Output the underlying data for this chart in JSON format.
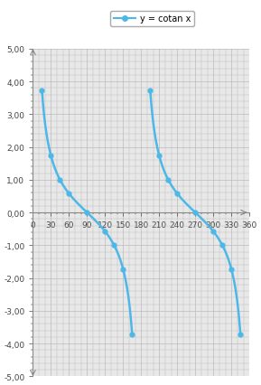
{
  "title": "y = cotan x",
  "xlim": [
    0,
    360
  ],
  "ylim": [
    -5,
    5
  ],
  "xticks": [
    0,
    30,
    60,
    90,
    120,
    150,
    180,
    210,
    240,
    270,
    300,
    330,
    360
  ],
  "yticks": [
    -5.0,
    -4.0,
    -3.0,
    -2.0,
    -1.0,
    0.0,
    1.0,
    2.0,
    3.0,
    4.0,
    5.0
  ],
  "line_color": "#4db8e8",
  "marker_color": "#4db8e8",
  "grid_color": "#bbbbbb",
  "axis_color": "#888888",
  "bg_color": "#ffffff",
  "plot_bg_color": "#e8e8e8",
  "clamp": 3.75,
  "clamp_start_deg": 15,
  "clamp_end_deg": 165
}
